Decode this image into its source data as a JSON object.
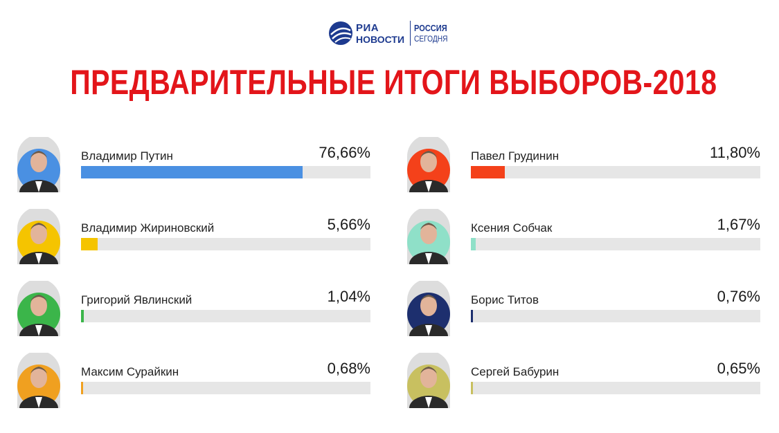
{
  "logo": {
    "line1": "РИА",
    "line2": "НОВОСТИ",
    "line3": "РОССИЯ",
    "line4": "СЕГОДНЯ"
  },
  "title": "ПРЕДВАРИТЕЛЬНЫЕ ИТОГИ ВЫБОРОВ-2018",
  "chart_data": {
    "type": "bar",
    "title": "ПРЕДВАРИТЕЛЬНЫЕ ИТОГИ ВЫБОРОВ-2018",
    "xlabel": "",
    "ylabel": "",
    "ylim": [
      0,
      100
    ],
    "categories": [
      "Владимир Путин",
      "Павел Грудинин",
      "Владимир Жириновский",
      "Ксения Собчак",
      "Григорий Явлинский",
      "Борис Титов",
      "Максим Сурайкин",
      "Сергей Бабурин"
    ],
    "values": [
      76.66,
      11.8,
      5.66,
      1.67,
      1.04,
      0.76,
      0.68,
      0.65
    ],
    "labels": [
      "76,66%",
      "11,80%",
      "5,66%",
      "1,67%",
      "1,04%",
      "0,76%",
      "0,68%",
      "0,65%"
    ],
    "colors": [
      "#4a90e2",
      "#f4411a",
      "#f5c400",
      "#8fe0c8",
      "#3bb54a",
      "#1d2f6e",
      "#f0a020",
      "#c8c060"
    ],
    "avatar_bg": [
      "#4a90e2",
      "#f4411a",
      "#f5c400",
      "#8fe0c8",
      "#3bb54a",
      "#1d2f6e",
      "#f0a020",
      "#c8c060"
    ],
    "grid": false,
    "legend": "none"
  }
}
